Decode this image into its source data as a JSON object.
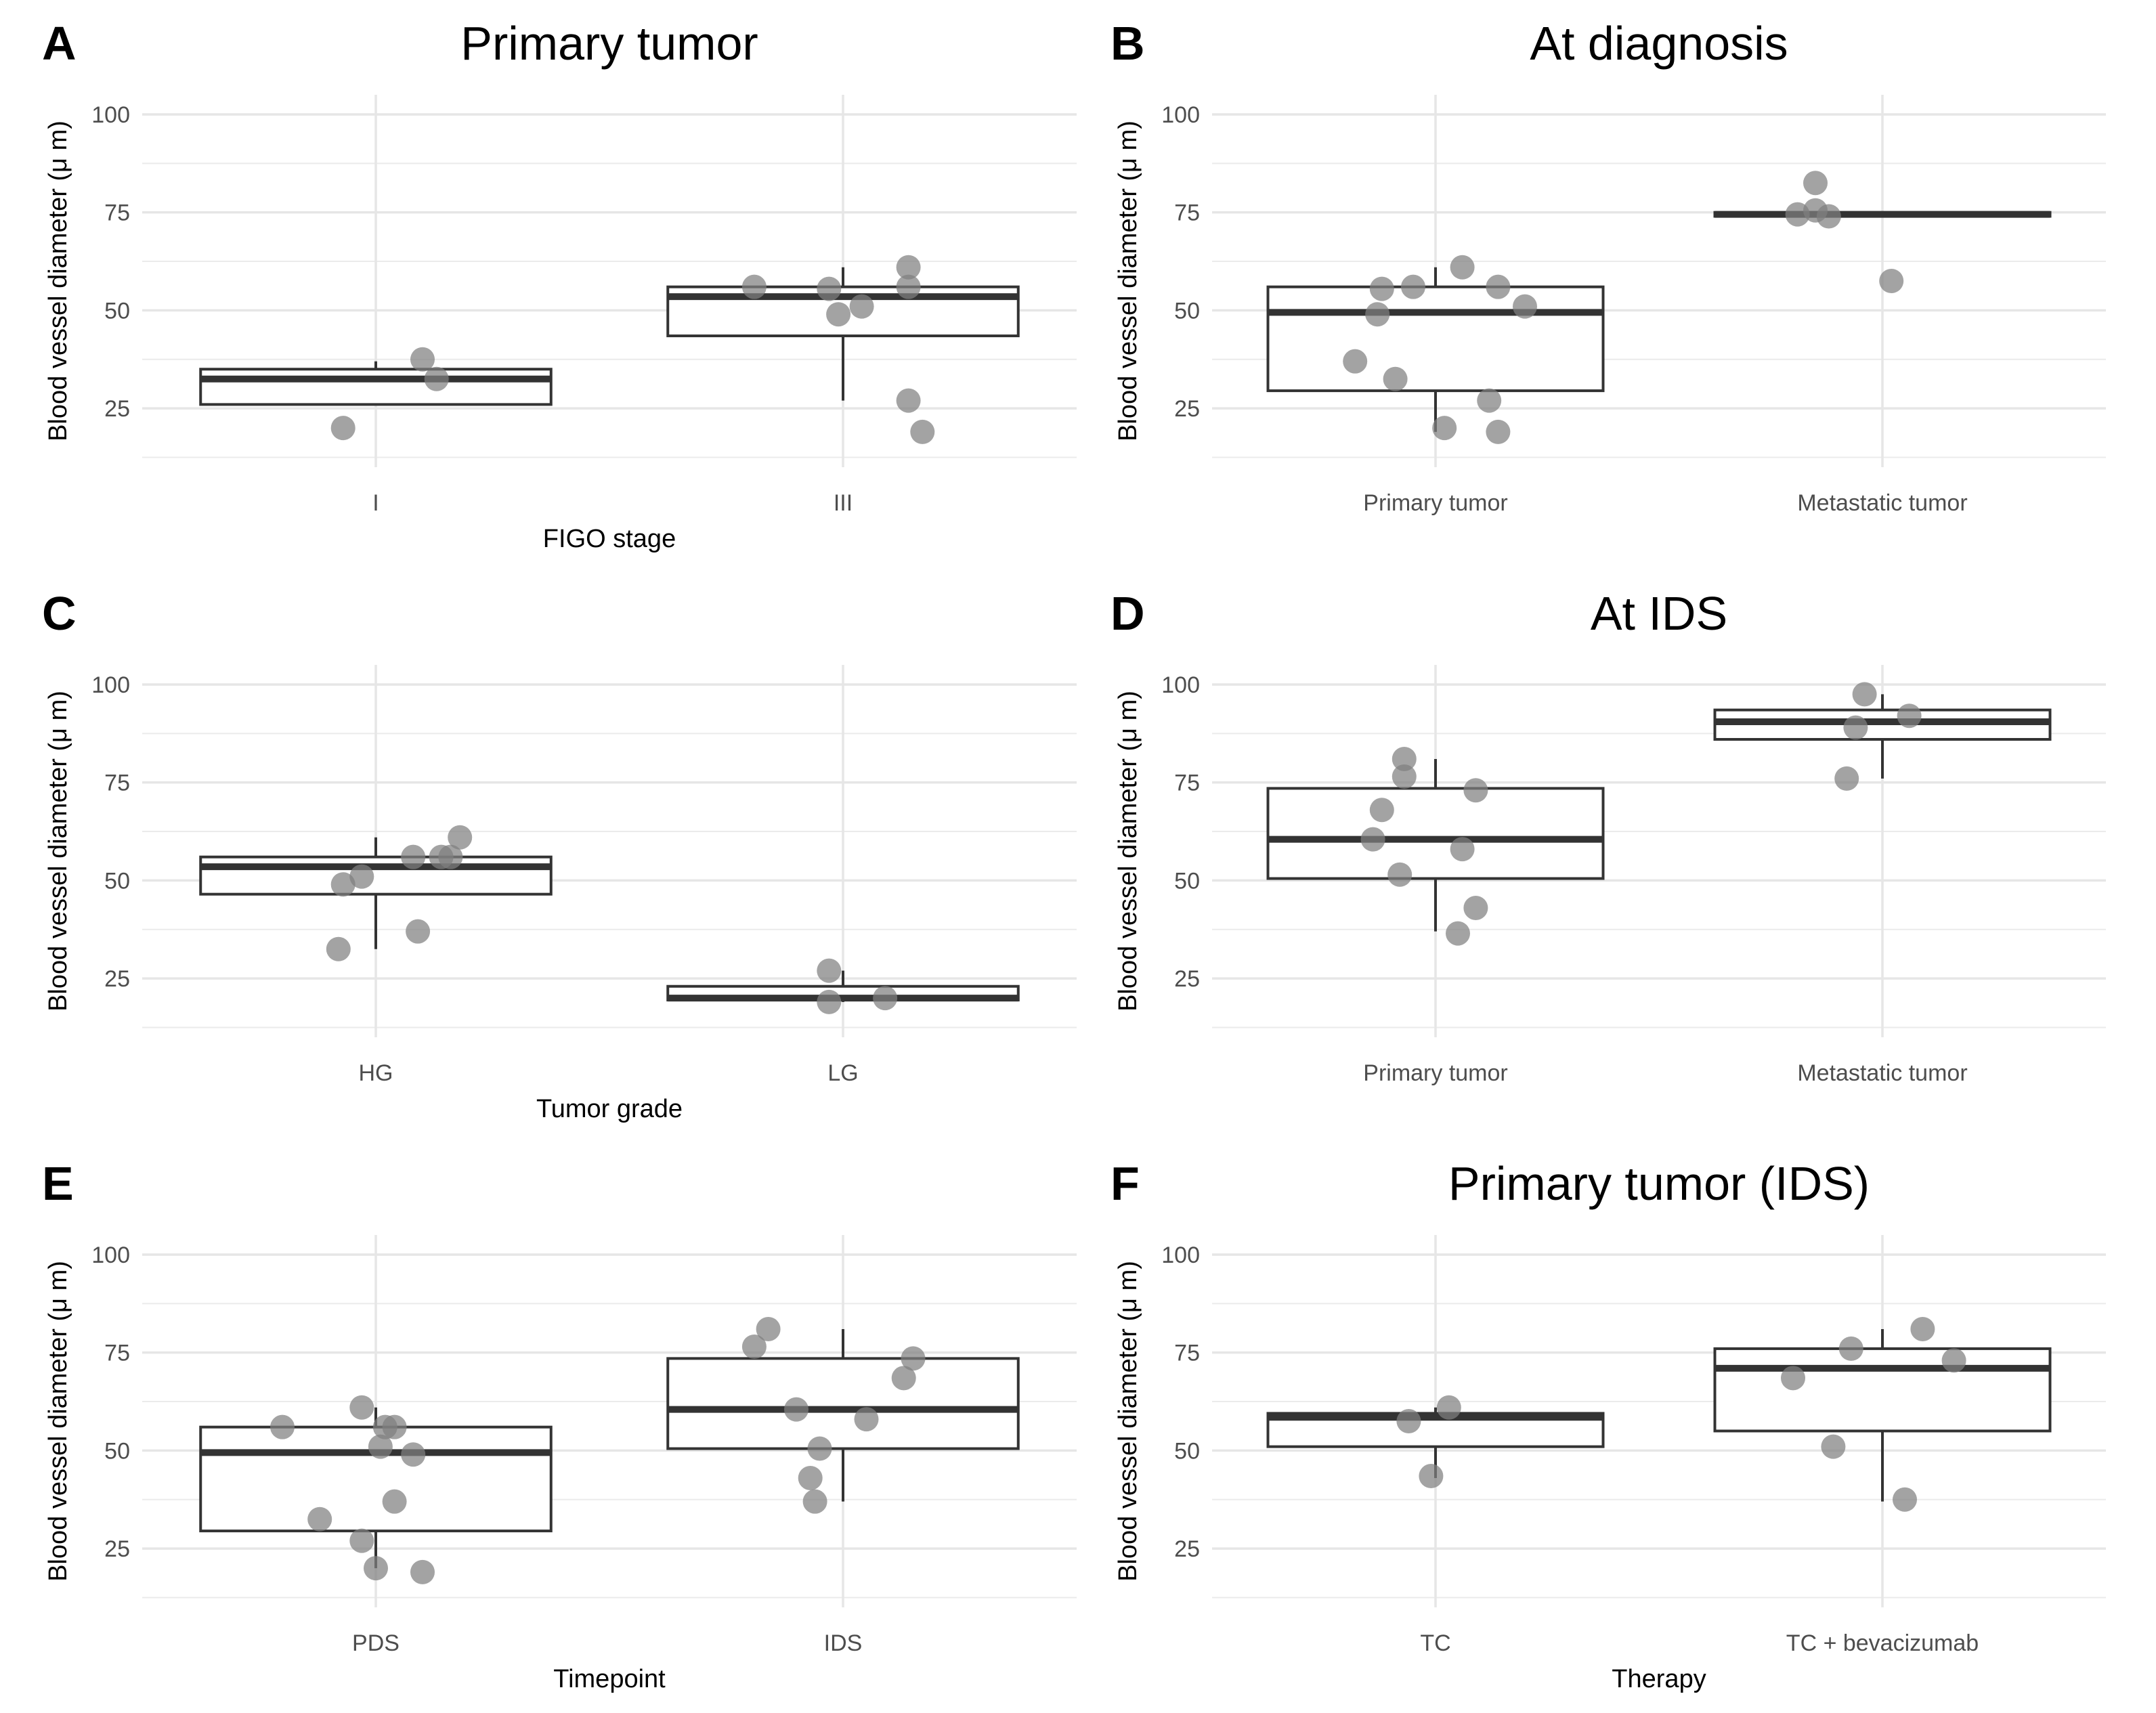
{
  "figure": {
    "chart_data": [
      {
        "panel": "A",
        "type": "box",
        "title": "Primary tumor",
        "xlabel": "FIGO stage",
        "ylabel": "Blood vessel diameter (μ m)",
        "ylim": [
          10,
          105
        ],
        "yticks": [
          25,
          50,
          75,
          100
        ],
        "categories": [
          "I",
          "III"
        ],
        "boxes": [
          {
            "lower": 26,
            "q1": 26,
            "median": 32.5,
            "q3": 35,
            "upper": 37
          },
          {
            "lower": 27,
            "q1": 43.5,
            "median": 53.5,
            "q3": 56,
            "upper": 61
          }
        ],
        "points": [
          [
            {
              "x": -0.07,
              "y": 20
            },
            {
              "x": 0.1,
              "y": 37.5
            },
            {
              "x": 0.13,
              "y": 32.5
            }
          ],
          [
            {
              "x": -0.19,
              "y": 56
            },
            {
              "x": -0.03,
              "y": 55.5
            },
            {
              "x": -0.01,
              "y": 49
            },
            {
              "x": 0.04,
              "y": 51
            },
            {
              "x": 0.14,
              "y": 61
            },
            {
              "x": 0.14,
              "y": 56
            },
            {
              "x": 0.14,
              "y": 27
            },
            {
              "x": 0.17,
              "y": 19
            }
          ]
        ]
      },
      {
        "panel": "B",
        "type": "box",
        "title": "At diagnosis",
        "xlabel": "",
        "ylabel": "Blood vessel diameter (μ m)",
        "ylim": [
          10,
          105
        ],
        "yticks": [
          25,
          50,
          75,
          100
        ],
        "categories": [
          "Primary tumor",
          "Metastatic tumor"
        ],
        "boxes": [
          {
            "lower": 19,
            "q1": 29.5,
            "median": 49.5,
            "q3": 56,
            "upper": 61
          },
          {
            "lower": 74,
            "q1": 74,
            "median": 74.5,
            "q3": 75,
            "upper": 75
          }
        ],
        "points": [
          [
            {
              "x": -0.18,
              "y": 37
            },
            {
              "x": -0.13,
              "y": 49
            },
            {
              "x": -0.12,
              "y": 55.5
            },
            {
              "x": -0.09,
              "y": 32.5
            },
            {
              "x": -0.05,
              "y": 56
            },
            {
              "x": 0.02,
              "y": 20
            },
            {
              "x": 0.06,
              "y": 61
            },
            {
              "x": 0.12,
              "y": 27
            },
            {
              "x": 0.14,
              "y": 19
            },
            {
              "x": 0.14,
              "y": 56
            },
            {
              "x": 0.2,
              "y": 51
            }
          ],
          [
            {
              "x": -0.19,
              "y": 74.5
            },
            {
              "x": -0.15,
              "y": 82.5
            },
            {
              "x": -0.15,
              "y": 75.5
            },
            {
              "x": -0.12,
              "y": 74
            },
            {
              "x": 0.02,
              "y": 57.5
            }
          ]
        ]
      },
      {
        "panel": "C",
        "type": "box",
        "title": "",
        "xlabel": "Tumor grade",
        "ylabel": "Blood vessel diameter (μ m)",
        "ylim": [
          10,
          105
        ],
        "yticks": [
          25,
          50,
          75,
          100
        ],
        "categories": [
          "HG",
          "LG"
        ],
        "boxes": [
          {
            "lower": 32.5,
            "q1": 46.5,
            "median": 53.5,
            "q3": 56,
            "upper": 61
          },
          {
            "lower": 19,
            "q1": 19.5,
            "median": 20,
            "q3": 23,
            "upper": 27
          }
        ],
        "points": [
          [
            {
              "x": -0.08,
              "y": 32.5
            },
            {
              "x": -0.07,
              "y": 49
            },
            {
              "x": -0.03,
              "y": 51
            },
            {
              "x": 0.08,
              "y": 56
            },
            {
              "x": 0.09,
              "y": 37
            },
            {
              "x": 0.14,
              "y": 56
            },
            {
              "x": 0.16,
              "y": 56
            },
            {
              "x": 0.18,
              "y": 61
            }
          ],
          [
            {
              "x": -0.03,
              "y": 19
            },
            {
              "x": -0.03,
              "y": 27
            },
            {
              "x": 0.09,
              "y": 20
            }
          ]
        ]
      },
      {
        "panel": "D",
        "type": "box",
        "title": "At IDS",
        "xlabel": "",
        "ylabel": "Blood vessel diameter (μ m)",
        "ylim": [
          10,
          105
        ],
        "yticks": [
          25,
          50,
          75,
          100
        ],
        "categories": [
          "Primary tumor",
          "Metastatic tumor"
        ],
        "boxes": [
          {
            "lower": 37,
            "q1": 50.5,
            "median": 60.5,
            "q3": 73.5,
            "upper": 81
          },
          {
            "lower": 76,
            "q1": 86,
            "median": 90.5,
            "q3": 93.5,
            "upper": 97.5
          }
        ],
        "points": [
          [
            {
              "x": -0.14,
              "y": 60.5
            },
            {
              "x": -0.12,
              "y": 68
            },
            {
              "x": -0.08,
              "y": 51.5
            },
            {
              "x": -0.07,
              "y": 81
            },
            {
              "x": -0.07,
              "y": 76.5
            },
            {
              "x": 0.05,
              "y": 36.5
            },
            {
              "x": 0.06,
              "y": 58
            },
            {
              "x": 0.09,
              "y": 43
            },
            {
              "x": 0.09,
              "y": 73
            }
          ],
          [
            {
              "x": -0.08,
              "y": 76
            },
            {
              "x": -0.06,
              "y": 89
            },
            {
              "x": -0.04,
              "y": 97.5
            },
            {
              "x": 0.06,
              "y": 92
            }
          ]
        ]
      },
      {
        "panel": "E",
        "type": "box",
        "title": "",
        "xlabel": "Timepoint",
        "ylabel": "Blood vessel diameter (μ m)",
        "ylim": [
          10,
          105
        ],
        "yticks": [
          25,
          50,
          75,
          100
        ],
        "categories": [
          "PDS",
          "IDS"
        ],
        "boxes": [
          {
            "lower": 20,
            "q1": 29.5,
            "median": 49.5,
            "q3": 56,
            "upper": 61
          },
          {
            "lower": 37,
            "q1": 50.5,
            "median": 60.5,
            "q3": 73.5,
            "upper": 81
          }
        ],
        "points": [
          [
            {
              "x": -0.2,
              "y": 56
            },
            {
              "x": -0.12,
              "y": 32.5
            },
            {
              "x": -0.03,
              "y": 27
            },
            {
              "x": -0.03,
              "y": 61
            },
            {
              "x": 0.0,
              "y": 20
            },
            {
              "x": 0.01,
              "y": 51
            },
            {
              "x": 0.02,
              "y": 56
            },
            {
              "x": 0.04,
              "y": 56
            },
            {
              "x": 0.04,
              "y": 37
            },
            {
              "x": 0.08,
              "y": 49
            },
            {
              "x": 0.1,
              "y": 19
            }
          ],
          [
            {
              "x": -0.19,
              "y": 76.5
            },
            {
              "x": -0.16,
              "y": 81
            },
            {
              "x": -0.1,
              "y": 60.5
            },
            {
              "x": -0.07,
              "y": 43
            },
            {
              "x": -0.06,
              "y": 37
            },
            {
              "x": -0.05,
              "y": 50.5
            },
            {
              "x": 0.05,
              "y": 58
            },
            {
              "x": 0.13,
              "y": 68.5
            },
            {
              "x": 0.15,
              "y": 73.5
            }
          ]
        ]
      },
      {
        "panel": "F",
        "type": "box",
        "title": "Primary tumor (IDS)",
        "xlabel": "Therapy",
        "ylabel": "Blood vessel diameter (μ m)",
        "ylim": [
          10,
          105
        ],
        "yticks": [
          25,
          50,
          75,
          100
        ],
        "categories": [
          "TC",
          "TC + bevacizumab"
        ],
        "boxes": [
          {
            "lower": 43,
            "q1": 51,
            "median": 58.5,
            "q3": 59.5,
            "upper": 61
          },
          {
            "lower": 37,
            "q1": 55,
            "median": 71,
            "q3": 76,
            "upper": 81
          }
        ],
        "points": [
          [
            {
              "x": -0.06,
              "y": 57.5
            },
            {
              "x": -0.01,
              "y": 43.5
            },
            {
              "x": 0.03,
              "y": 61
            }
          ],
          [
            {
              "x": -0.2,
              "y": 68.5
            },
            {
              "x": -0.11,
              "y": 51
            },
            {
              "x": -0.07,
              "y": 76
            },
            {
              "x": 0.05,
              "y": 37.5
            },
            {
              "x": 0.09,
              "y": 81
            },
            {
              "x": 0.16,
              "y": 73
            }
          ]
        ]
      }
    ]
  }
}
